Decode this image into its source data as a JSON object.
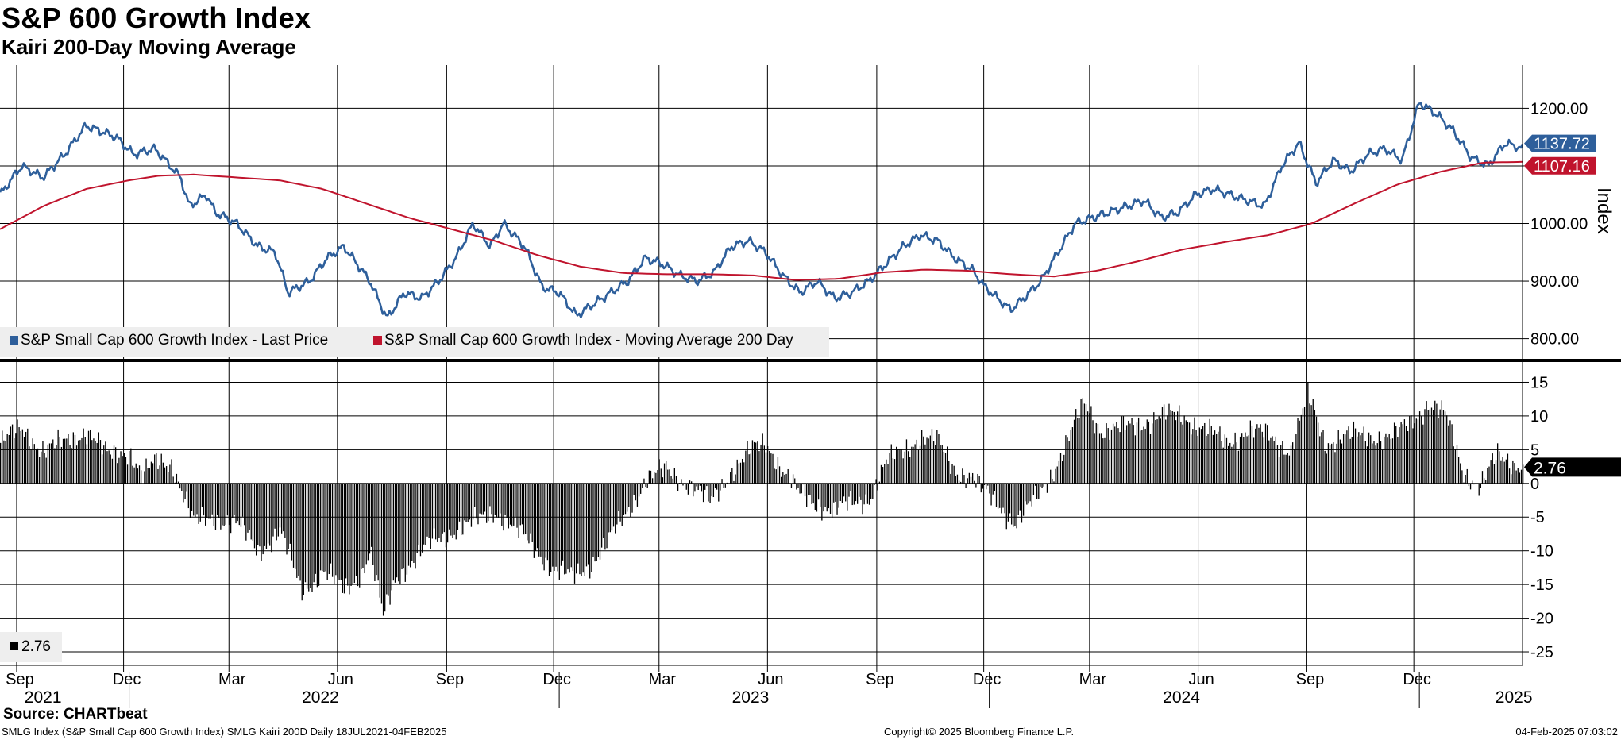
{
  "header": {
    "title": "S&P 600 Growth Index",
    "subtitle": "Kairi 200-Day Moving Average"
  },
  "footer": {
    "source": "Source: CHARTbeat",
    "description": "SMLG Index (S&P Small Cap 600 Growth Index) SMLG Kairi 200D  Daily 18JUL2021-04FEB2025",
    "copyright": "Copyright© 2025 Bloomberg Finance L.P.",
    "timestamp": "04-Feb-2025 07:03:02"
  },
  "colors": {
    "price": "#2e5f9b",
    "ma": "#c0142d",
    "kairi": "#000000",
    "grid": "#000000"
  },
  "chart_data": [
    {
      "type": "line",
      "title": "S&P 600 Growth Index",
      "ylabel": "Index",
      "ylim": [
        765,
        1275
      ],
      "yticks": [
        800,
        900,
        1000,
        1100,
        1200
      ],
      "ytick_labels": [
        "800.00",
        "900.00",
        "1000.00",
        "1100.00",
        "1200.00"
      ],
      "grid": true,
      "legend_position": "bottom-left",
      "series": [
        {
          "name": "S&P Small Cap 600 Growth Index - Last Price",
          "color": "#2e5f9b",
          "last_value": 1137.72,
          "last_label": "1137.72",
          "points": [
            [
              0,
              1050
            ],
            [
              0.05,
              1100
            ],
            [
              0.1,
              1080
            ],
            [
              0.15,
              1120
            ],
            [
              0.2,
              1170
            ],
            [
              0.27,
              1150
            ],
            [
              0.31,
              1120
            ],
            [
              0.36,
              1130
            ],
            [
              0.42,
              1080
            ],
            [
              0.44,
              1030
            ],
            [
              0.48,
              1050
            ],
            [
              0.5,
              1020
            ],
            [
              0.55,
              1000
            ],
            [
              0.6,
              960
            ],
            [
              0.64,
              950
            ],
            [
              0.67,
              880
            ],
            [
              0.72,
              900
            ],
            [
              0.76,
              940
            ],
            [
              0.8,
              960
            ],
            [
              0.84,
              920
            ],
            [
              0.86,
              900
            ],
            [
              0.9,
              835
            ],
            [
              0.94,
              880
            ],
            [
              0.98,
              870
            ],
            [
              1.02,
              900
            ],
            [
              1.06,
              940
            ],
            [
              1.1,
              1000
            ],
            [
              1.14,
              960
            ],
            [
              1.17,
              1000
            ],
            [
              1.22,
              960
            ],
            [
              1.26,
              890
            ],
            [
              1.3,
              880
            ],
            [
              1.34,
              840
            ],
            [
              1.38,
              860
            ],
            [
              1.42,
              880
            ],
            [
              1.46,
              900
            ],
            [
              1.5,
              940
            ],
            [
              1.54,
              930
            ],
            [
              1.58,
              910
            ],
            [
              1.62,
              900
            ],
            [
              1.66,
              915
            ],
            [
              1.7,
              960
            ],
            [
              1.74,
              970
            ],
            [
              1.78,
              950
            ],
            [
              1.82,
              910
            ],
            [
              1.86,
              880
            ],
            [
              1.9,
              900
            ],
            [
              1.94,
              870
            ],
            [
              1.98,
              880
            ],
            [
              2.02,
              900
            ],
            [
              2.06,
              930
            ],
            [
              2.1,
              960
            ],
            [
              2.14,
              980
            ],
            [
              2.18,
              970
            ],
            [
              2.22,
              940
            ],
            [
              2.26,
              920
            ],
            [
              2.29,
              890
            ],
            [
              2.32,
              870
            ],
            [
              2.35,
              850
            ],
            [
              2.38,
              870
            ],
            [
              2.42,
              900
            ],
            [
              2.46,
              950
            ],
            [
              2.5,
              1000
            ],
            [
              2.54,
              1010
            ],
            [
              2.58,
              1020
            ],
            [
              2.62,
              1030
            ],
            [
              2.66,
              1040
            ],
            [
              2.7,
              1010
            ],
            [
              2.74,
              1020
            ],
            [
              2.78,
              1050
            ],
            [
              2.82,
              1060
            ],
            [
              2.86,
              1050
            ],
            [
              2.9,
              1040
            ],
            [
              2.94,
              1030
            ],
            [
              2.98,
              1100
            ],
            [
              3.02,
              1140
            ],
            [
              3.06,
              1070
            ],
            [
              3.1,
              1110
            ],
            [
              3.14,
              1090
            ],
            [
              3.18,
              1120
            ],
            [
              3.22,
              1130
            ],
            [
              3.26,
              1110
            ],
            [
              3.3,
              1210
            ],
            [
              3.34,
              1190
            ],
            [
              3.38,
              1160
            ],
            [
              3.42,
              1115
            ],
            [
              3.46,
              1100
            ],
            [
              3.5,
              1140
            ],
            [
              3.54,
              1130
            ]
          ]
        },
        {
          "name": "S&P Small Cap 600 Growth Index - Moving Average 200 Day",
          "color": "#c0142d",
          "last_value": 1107.16,
          "last_label": "1107.16",
          "points": [
            [
              0,
              990
            ],
            [
              0.1,
              1030
            ],
            [
              0.2,
              1060
            ],
            [
              0.3,
              1075
            ],
            [
              0.37,
              1083
            ],
            [
              0.45,
              1085
            ],
            [
              0.55,
              1080
            ],
            [
              0.65,
              1075
            ],
            [
              0.75,
              1060
            ],
            [
              0.85,
              1035
            ],
            [
              0.95,
              1010
            ],
            [
              1.05,
              990
            ],
            [
              1.15,
              970
            ],
            [
              1.25,
              945
            ],
            [
              1.35,
              925
            ],
            [
              1.45,
              914
            ],
            [
              1.55,
              912
            ],
            [
              1.65,
              912
            ],
            [
              1.75,
              910
            ],
            [
              1.85,
              902
            ],
            [
              1.95,
              904
            ],
            [
              2.05,
              915
            ],
            [
              2.15,
              920
            ],
            [
              2.25,
              918
            ],
            [
              2.35,
              912
            ],
            [
              2.45,
              908
            ],
            [
              2.55,
              918
            ],
            [
              2.65,
              935
            ],
            [
              2.75,
              955
            ],
            [
              2.85,
              968
            ],
            [
              2.95,
              980
            ],
            [
              3.05,
              1000
            ],
            [
              3.15,
              1035
            ],
            [
              3.25,
              1068
            ],
            [
              3.35,
              1090
            ],
            [
              3.45,
              1106
            ],
            [
              3.54,
              1107
            ]
          ]
        }
      ]
    },
    {
      "type": "bar",
      "title": "SMLG Kairi 200D",
      "ylim": [
        -27,
        18
      ],
      "yticks": [
        -25,
        -20,
        -15,
        -10,
        -5,
        0,
        5,
        10,
        15
      ],
      "ytick_labels": [
        "-25",
        "-20",
        "-15",
        "-10",
        "-5",
        "0",
        "5",
        "10",
        "15"
      ],
      "grid": true,
      "legend_position": "bottom-left",
      "legend_label": "2.76",
      "last_value": 2.76,
      "last_label": "2.76",
      "series": [
        {
          "name": "Kairi 200-Day Moving Average",
          "points": [
            [
              0,
              6
            ],
            [
              0.05,
              8
            ],
            [
              0.1,
              5
            ],
            [
              0.15,
              6
            ],
            [
              0.2,
              8
            ],
            [
              0.25,
              4
            ],
            [
              0.3,
              5
            ],
            [
              0.33,
              1
            ],
            [
              0.36,
              3
            ],
            [
              0.4,
              3
            ],
            [
              0.45,
              -6
            ],
            [
              0.5,
              -5
            ],
            [
              0.55,
              -6
            ],
            [
              0.6,
              -10
            ],
            [
              0.65,
              -7
            ],
            [
              0.7,
              -16
            ],
            [
              0.75,
              -13
            ],
            [
              0.8,
              -16
            ],
            [
              0.84,
              -13
            ],
            [
              0.86,
              -10
            ],
            [
              0.89,
              -20
            ],
            [
              0.92,
              -14
            ],
            [
              0.95,
              -12
            ],
            [
              1.0,
              -9
            ],
            [
              1.05,
              -7
            ],
            [
              1.1,
              -6
            ],
            [
              1.15,
              -4
            ],
            [
              1.2,
              -7
            ],
            [
              1.25,
              -10
            ],
            [
              1.29,
              -13
            ],
            [
              1.33,
              -14
            ],
            [
              1.37,
              -12
            ],
            [
              1.41,
              -9
            ],
            [
              1.45,
              -5
            ],
            [
              1.5,
              0.5
            ],
            [
              1.55,
              2
            ],
            [
              1.6,
              0
            ],
            [
              1.65,
              -3
            ],
            [
              1.7,
              2
            ],
            [
              1.75,
              5
            ],
            [
              1.78,
              6
            ],
            [
              1.82,
              2
            ],
            [
              1.86,
              -2
            ],
            [
              1.9,
              -3
            ],
            [
              1.94,
              -4
            ],
            [
              1.98,
              -3
            ],
            [
              2.02,
              -2
            ],
            [
              2.06,
              3
            ],
            [
              2.1,
              5
            ],
            [
              2.14,
              7
            ],
            [
              2.18,
              6
            ],
            [
              2.22,
              2
            ],
            [
              2.26,
              1
            ],
            [
              2.28,
              -1
            ],
            [
              2.32,
              -3
            ],
            [
              2.36,
              -6
            ],
            [
              2.4,
              -3
            ],
            [
              2.44,
              1
            ],
            [
              2.48,
              6
            ],
            [
              2.52,
              12
            ],
            [
              2.56,
              8
            ],
            [
              2.6,
              8
            ],
            [
              2.65,
              9
            ],
            [
              2.7,
              10
            ],
            [
              2.75,
              10
            ],
            [
              2.8,
              8
            ],
            [
              2.85,
              6
            ],
            [
              2.9,
              8
            ],
            [
              2.95,
              7
            ],
            [
              3.0,
              5
            ],
            [
              3.04,
              13
            ],
            [
              3.08,
              6
            ],
            [
              3.12,
              7
            ],
            [
              3.16,
              7
            ],
            [
              3.2,
              7
            ],
            [
              3.24,
              7
            ],
            [
              3.28,
              9
            ],
            [
              3.32,
              12
            ],
            [
              3.36,
              10
            ],
            [
              3.4,
              2
            ],
            [
              3.44,
              -0.5
            ],
            [
              3.48,
              4
            ],
            [
              3.54,
              2.76
            ]
          ]
        }
      ]
    },
    {
      "type": "time-axis",
      "month_ticks": [
        {
          "label": "Sep",
          "t": 0.0387
        },
        {
          "label": "Dec",
          "t": 0.2873
        },
        {
          "label": "Mar",
          "t": 0.5323
        },
        {
          "label": "Jun",
          "t": 0.7845
        },
        {
          "label": "Sep",
          "t": 1.0385
        },
        {
          "label": "Dec",
          "t": 1.2873
        },
        {
          "label": "Mar",
          "t": 1.5323
        },
        {
          "label": "Jun",
          "t": 1.7845
        },
        {
          "label": "Sep",
          "t": 2.0385
        },
        {
          "label": "Dec",
          "t": 2.2873
        },
        {
          "label": "Mar",
          "t": 2.5333
        },
        {
          "label": "Jun",
          "t": 2.7858
        },
        {
          "label": "Sep",
          "t": 3.0385
        },
        {
          "label": "Dec",
          "t": 3.2873
        }
      ],
      "year_labels": [
        {
          "label": "2021",
          "t": 0.1
        },
        {
          "label": "2022",
          "t": 0.745
        },
        {
          "label": "2023",
          "t": 1.745
        },
        {
          "label": "2024",
          "t": 2.747
        },
        {
          "label": "2025",
          "t": 3.52
        }
      ],
      "year_boundaries": [
        0.2873,
        1.2873,
        2.2873,
        3.2873
      ]
    }
  ]
}
